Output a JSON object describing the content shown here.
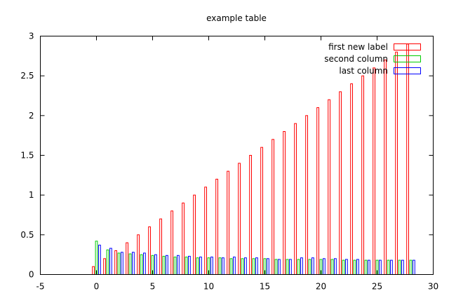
{
  "chart_data": {
    "type": "bar",
    "title": "example table",
    "xlabel": "",
    "ylabel": "",
    "xlim": [
      -5,
      30
    ],
    "ylim": [
      0,
      3
    ],
    "xticks": [
      -5,
      0,
      5,
      10,
      15,
      20,
      25,
      30
    ],
    "yticks": [
      0,
      0.5,
      1,
      1.5,
      2,
      2.5,
      3
    ],
    "ytick_labels": [
      "0",
      "0.5",
      "1",
      "1.5",
      "2",
      "2.5",
      "3"
    ],
    "grid": false,
    "legend_position": "top-right",
    "x": [
      0,
      1,
      2,
      3,
      4,
      5,
      6,
      7,
      8,
      9,
      10,
      11,
      12,
      13,
      14,
      15,
      16,
      17,
      18,
      19,
      20,
      21,
      22,
      23,
      24,
      25,
      26,
      27,
      28
    ],
    "series": [
      {
        "name": "first new label",
        "color": "#ff0000",
        "values": [
          0.1,
          0.2,
          0.3,
          0.4,
          0.5,
          0.6,
          0.7,
          0.8,
          0.9,
          1.0,
          1.1,
          1.2,
          1.3,
          1.4,
          1.5,
          1.6,
          1.7,
          1.8,
          1.9,
          2.0,
          2.1,
          2.2,
          2.3,
          2.4,
          2.5,
          2.6,
          2.7,
          2.8,
          2.9
        ]
      },
      {
        "name": "second column",
        "color": "#00cc00",
        "values": [
          0.42,
          0.31,
          0.27,
          0.26,
          0.25,
          0.24,
          0.23,
          0.22,
          0.22,
          0.21,
          0.21,
          0.21,
          0.2,
          0.2,
          0.2,
          0.2,
          0.19,
          0.19,
          0.19,
          0.19,
          0.19,
          0.19,
          0.18,
          0.18,
          0.18,
          0.18,
          0.18,
          0.18,
          0.18
        ]
      },
      {
        "name": "last column",
        "color": "#0000ff",
        "values": [
          0.37,
          0.33,
          0.28,
          0.28,
          0.27,
          0.25,
          0.24,
          0.24,
          0.23,
          0.22,
          0.22,
          0.21,
          0.22,
          0.21,
          0.21,
          0.2,
          0.19,
          0.19,
          0.21,
          0.21,
          0.2,
          0.2,
          0.19,
          0.19,
          0.18,
          0.18,
          0.18,
          0.18,
          0.18
        ]
      }
    ]
  }
}
